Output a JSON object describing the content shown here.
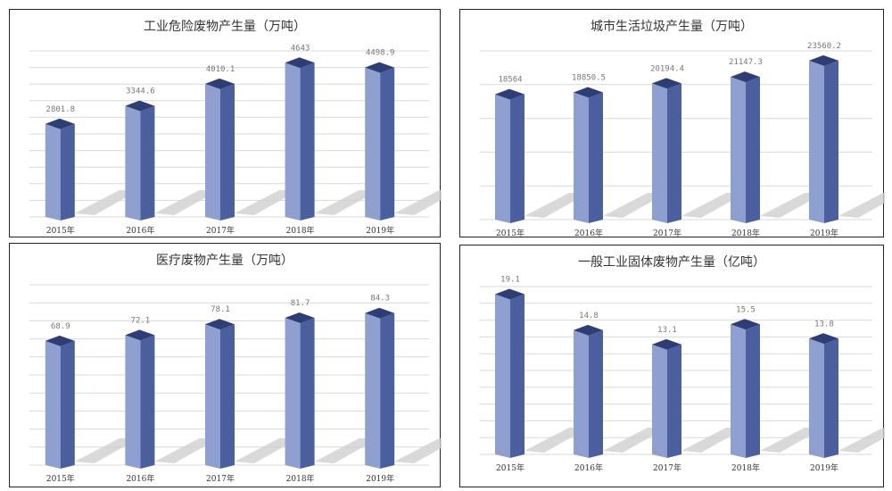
{
  "chart_data": [
    {
      "type": "bar",
      "title": "工业危险废物产生量（万吨）",
      "categories": [
        "2015年",
        "2016年",
        "2017年",
        "2018年",
        "2019年"
      ],
      "values": [
        2801.8,
        3344.6,
        4010.1,
        4643,
        4498.9
      ],
      "value_labels": [
        "2801.8",
        "3344.6",
        "4010.1",
        "4643",
        "4498.9"
      ],
      "ylim": [
        0,
        5000
      ],
      "ystep": 500,
      "grid": true,
      "bar_3d": true
    },
    {
      "type": "bar",
      "title": "城市生活垃圾产生量（万吨）",
      "categories": [
        "2015年",
        "2016年",
        "2017年",
        "2018年",
        "2019年"
      ],
      "values": [
        18564,
        18850.5,
        20194.4,
        21147.3,
        23560.2
      ],
      "value_labels": [
        "18564",
        "18850.5",
        "20194.4",
        "21147.3",
        "23560.2"
      ],
      "ylim": [
        0,
        25000
      ],
      "ystep": 5000,
      "grid": true,
      "bar_3d": true
    },
    {
      "type": "bar",
      "title": "医疗废物产生量（万吨）",
      "categories": [
        "2015年",
        "2016年",
        "2017年",
        "2018年",
        "2019年"
      ],
      "values": [
        68.9,
        72.1,
        78.1,
        81.7,
        84.3
      ],
      "value_labels": [
        "68.9",
        "72.1",
        "78.1",
        "81.7",
        "84.3"
      ],
      "ylim": [
        0,
        100
      ],
      "ystep": 10,
      "grid": true,
      "bar_3d": true
    },
    {
      "type": "bar",
      "title": "一般工业固体废物产生量（亿吨）",
      "categories": [
        "2015年",
        "2016年",
        "2017年",
        "2018年",
        "2019年"
      ],
      "values": [
        19.1,
        14.8,
        13.1,
        15.5,
        13.8
      ],
      "value_labels": [
        "19.1",
        "14.8",
        "13.1",
        "15.5",
        "13.8"
      ],
      "ylim": [
        0,
        20
      ],
      "ystep": 2,
      "grid": true,
      "bar_3d": true
    }
  ],
  "colors": {
    "front": "#8f9fcf",
    "side": "#4b5f9f",
    "top": "#2e3e74",
    "grid": "#d9d9d9",
    "shadow": "#cfcfcf"
  }
}
